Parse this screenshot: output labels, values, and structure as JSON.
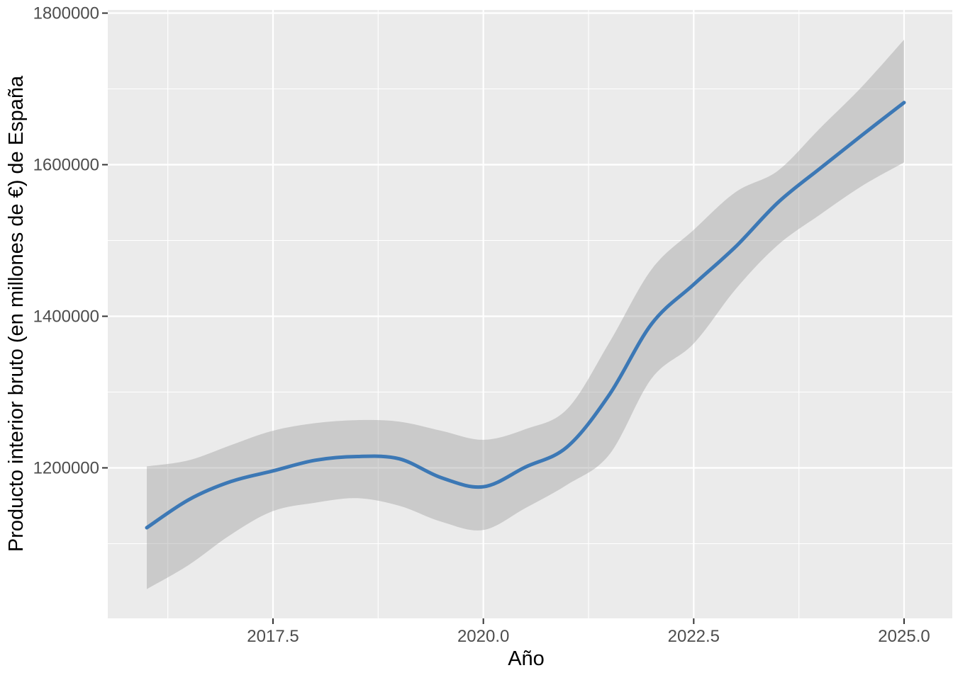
{
  "page": {
    "background": "#FFFFFF"
  },
  "chart_data": {
    "type": "line",
    "title": "",
    "xlabel": "Año",
    "ylabel": "Producto interior bruto (en millones de €) de España",
    "x": [
      2016.0,
      2016.5,
      2017.0,
      2017.5,
      2018.0,
      2018.5,
      2019.0,
      2019.5,
      2020.0,
      2020.5,
      2021.0,
      2021.5,
      2022.0,
      2022.5,
      2023.0,
      2023.5,
      2024.0,
      2024.5,
      2025.0
    ],
    "series": [
      {
        "name": "smooth_line",
        "type": "smooth-line",
        "color": "#3C78B5",
        "stroke_width": 5,
        "values": [
          1121000,
          1158000,
          1182000,
          1196000,
          1210000,
          1215000,
          1212000,
          1187000,
          1175000,
          1201000,
          1228000,
          1297000,
          1390000,
          1442000,
          1492000,
          1550000,
          1595000,
          1639000,
          1682000
        ]
      },
      {
        "name": "confidence_ribbon",
        "type": "ribbon",
        "color": "#999999",
        "opacity": 0.4,
        "ymin": [
          1040000,
          1072000,
          1112000,
          1143000,
          1154000,
          1160000,
          1150000,
          1129000,
          1118000,
          1147000,
          1178000,
          1218000,
          1318000,
          1364000,
          1436000,
          1494000,
          1534000,
          1572000,
          1603000
        ],
        "ymax": [
          1202000,
          1210000,
          1230000,
          1249000,
          1259000,
          1263000,
          1261000,
          1249000,
          1237000,
          1251000,
          1278000,
          1366000,
          1462000,
          1514000,
          1564000,
          1592000,
          1648000,
          1703000,
          1765000
        ]
      }
    ],
    "x_axis": {
      "major_ticks": [
        2017.5,
        2020.0,
        2022.5,
        2025.0
      ],
      "tick_labels": [
        "2017.5",
        "2020.0",
        "2022.5",
        "2025.0"
      ],
      "minor_ticks": [
        2016.25,
        2018.75,
        2021.25,
        2023.75
      ],
      "range": [
        2015.54,
        2025.57
      ]
    },
    "y_axis": {
      "major_ticks": [
        1200000,
        1400000,
        1600000,
        1800000
      ],
      "tick_labels": [
        "1200000",
        "1400000",
        "1600000",
        "1800000"
      ],
      "minor_ticks": [
        1100000,
        1300000,
        1500000,
        1700000
      ],
      "range": [
        1001000,
        1804000
      ]
    },
    "grid": "on",
    "legend": "none",
    "theme": {
      "panel_bg": "#EBEBEB",
      "grid_color": "#FFFFFF",
      "tick_mark_color": "#333333",
      "tick_label_color": "#4D4D4D",
      "axis_title_color": "#000000",
      "outer_bg": "#FFFFFF"
    }
  }
}
